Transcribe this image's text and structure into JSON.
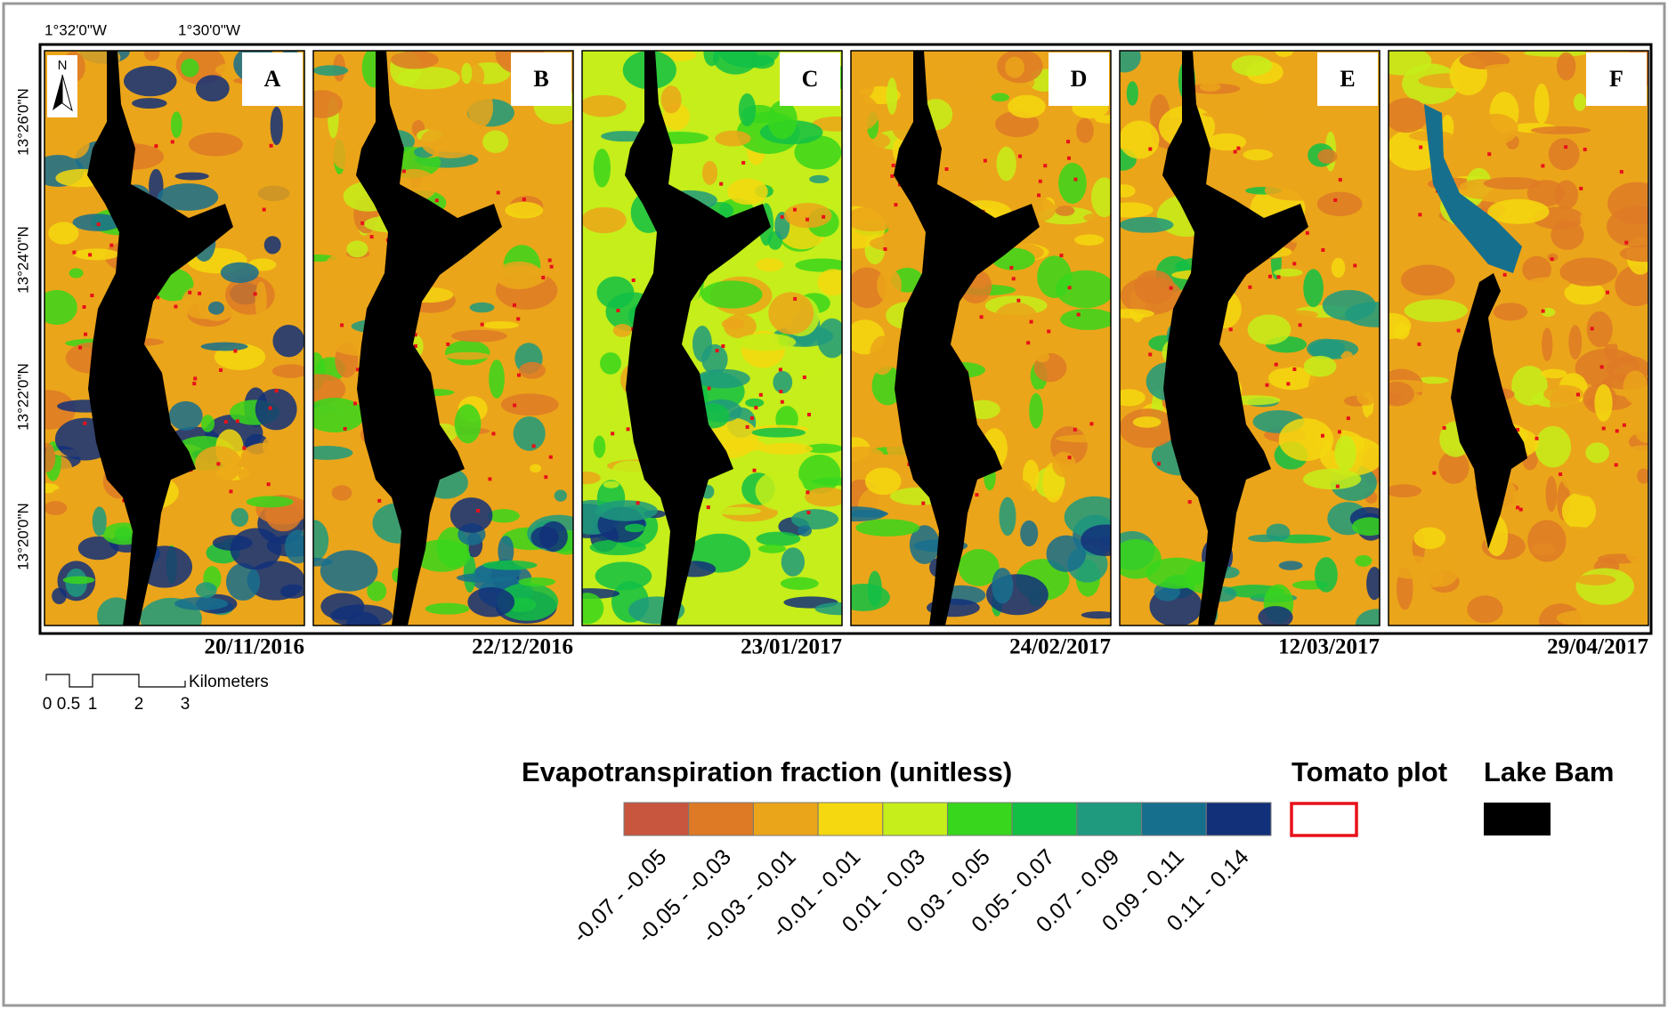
{
  "coordinates": {
    "top": [
      "1°32'0\"W",
      "1°30'0\"W"
    ],
    "left": [
      "13°26'0\"N",
      "13°24'0\"N",
      "13°22'0\"N",
      "13°20'0\"N"
    ]
  },
  "north_arrow": "N",
  "panels": [
    {
      "letter": "A",
      "date": "20/11/2016"
    },
    {
      "letter": "B",
      "date": "22/12/2016"
    },
    {
      "letter": "C",
      "date": "23/01/2017"
    },
    {
      "letter": "D",
      "date": "24/02/2017"
    },
    {
      "letter": "E",
      "date": "12/03/2017"
    },
    {
      "letter": "F",
      "date": "29/04/2017"
    }
  ],
  "scale_bar": {
    "unit": "Kilometers",
    "labels": [
      "0",
      "0.5",
      "1",
      "2",
      "3"
    ]
  },
  "legend": {
    "title": "Evapotranspiration fraction (unitless)",
    "classes": [
      {
        "label": "-0.07 - -0.05",
        "color": "#c8553d"
      },
      {
        "label": "-0.05 - -0.03",
        "color": "#de7a26"
      },
      {
        "label": "-0.03 - -0.01",
        "color": "#eba51a"
      },
      {
        "label": "-0.01 - 0.01",
        "color": "#f5d80f"
      },
      {
        "label": "0.01 - 0.03",
        "color": "#c5ee1a"
      },
      {
        "label": "0.03 - 0.05",
        "color": "#38d61c"
      },
      {
        "label": "0.05 - 0.07",
        "color": "#12bf45"
      },
      {
        "label": "0.07 - 0.09",
        "color": "#1f9a7e"
      },
      {
        "label": "0.09 - 0.11",
        "color": "#176f8e"
      },
      {
        "label": "0.11 - 0.14",
        "color": "#12307a"
      }
    ],
    "tomato_plot": "Tomato plot",
    "lake": "Lake Bam"
  }
}
